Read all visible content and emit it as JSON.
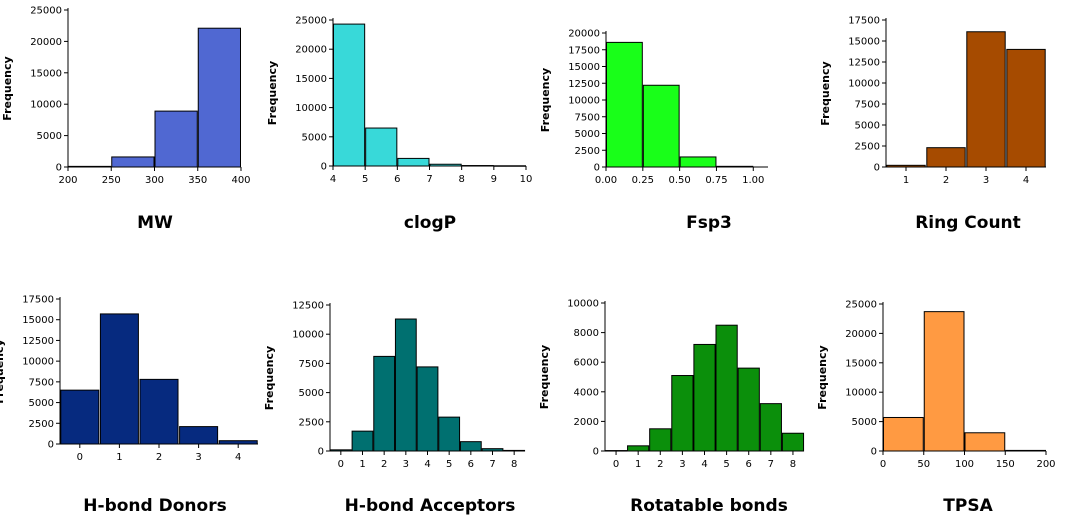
{
  "chart_data": [
    {
      "type": "bar",
      "panel": "mw",
      "title": "MW",
      "ylabel": "Frequency",
      "xlabel": "",
      "color": "#5068d2",
      "bar_mode": "histogram",
      "xlim": [
        200,
        400
      ],
      "ylim": [
        0,
        25000
      ],
      "xticks": [
        200,
        250,
        300,
        350,
        400
      ],
      "yticks": [
        0,
        5000,
        10000,
        15000,
        20000,
        25000
      ],
      "bins": [
        [
          200,
          250,
          100
        ],
        [
          250,
          300,
          1600
        ],
        [
          300,
          350,
          8900
        ],
        [
          350,
          400,
          22100
        ]
      ]
    },
    {
      "type": "bar",
      "panel": "clogp",
      "title": "clogP",
      "ylabel": "Frequency",
      "xlabel": "",
      "color": "#38d9d9",
      "bar_mode": "histogram",
      "xlim": [
        4,
        10
      ],
      "ylim": [
        0,
        25000
      ],
      "xticks": [
        4,
        5,
        6,
        7,
        8,
        9,
        10
      ],
      "yticks": [
        0,
        5000,
        10000,
        15000,
        20000,
        25000
      ],
      "bins": [
        [
          4,
          5,
          24300
        ],
        [
          5,
          6,
          6500
        ],
        [
          6,
          7,
          1300
        ],
        [
          7,
          8,
          300
        ],
        [
          8,
          9,
          80
        ],
        [
          9,
          10,
          40
        ]
      ]
    },
    {
      "type": "bar",
      "panel": "fsp3",
      "title": "Fsp3",
      "ylabel": "Frequency",
      "xlabel": "",
      "color": "#19ff19",
      "bar_mode": "histogram",
      "xlim": [
        0,
        1.1
      ],
      "ylim": [
        0,
        20000
      ],
      "xticks": [
        "0.00",
        "0.25",
        "0.50",
        "0.75",
        "1.00"
      ],
      "yticks": [
        0,
        2500,
        5000,
        7500,
        10000,
        12500,
        15000,
        17500,
        20000
      ],
      "bins": [
        [
          0,
          0.25,
          18600
        ],
        [
          0.25,
          0.5,
          12200
        ],
        [
          0.5,
          0.75,
          1500
        ],
        [
          0.75,
          1.0,
          100
        ]
      ]
    },
    {
      "type": "bar",
      "panel": "ring",
      "title": "Ring Count",
      "ylabel": "Frequency",
      "xlabel": "",
      "color": "#a64b00",
      "bar_mode": "category",
      "xlim": [
        0.5,
        4.5
      ],
      "ylim": [
        0,
        17500
      ],
      "xticks": [
        1,
        2,
        3,
        4
      ],
      "yticks": [
        0,
        2500,
        5000,
        7500,
        10000,
        12500,
        15000,
        17500
      ],
      "categories": [
        1,
        2,
        3,
        4
      ],
      "values": [
        200,
        2300,
        16100,
        14000
      ]
    },
    {
      "type": "bar",
      "panel": "hbd",
      "title": "H-bond Donors",
      "ylabel": "Frequency",
      "xlabel": "",
      "color": "#062a7f",
      "bar_mode": "category",
      "xlim": [
        -0.5,
        4.5
      ],
      "ylim": [
        0,
        17500
      ],
      "xticks": [
        0,
        1,
        2,
        3,
        4
      ],
      "yticks": [
        0,
        2500,
        5000,
        7500,
        10000,
        12500,
        15000,
        17500
      ],
      "categories": [
        0,
        1,
        2,
        3,
        4
      ],
      "values": [
        6500,
        15700,
        7800,
        2100,
        400
      ]
    },
    {
      "type": "bar",
      "panel": "hba",
      "title": "H-bond Acceptors",
      "ylabel": "Frequency",
      "xlabel": "",
      "color": "#007070",
      "bar_mode": "category",
      "xlim": [
        -0.5,
        8.5
      ],
      "ylim": [
        0,
        12500
      ],
      "xticks": [
        0,
        1,
        2,
        3,
        4,
        5,
        6,
        7,
        8
      ],
      "yticks": [
        0,
        2500,
        5000,
        7500,
        10000,
        12500
      ],
      "categories": [
        0,
        1,
        2,
        3,
        4,
        5,
        6,
        7,
        8
      ],
      "values": [
        100,
        1700,
        8100,
        11300,
        7200,
        2900,
        800,
        200,
        50
      ]
    },
    {
      "type": "bar",
      "panel": "rot",
      "title": "Rotatable bonds",
      "ylabel": "Frequency",
      "xlabel": "",
      "color": "#0b8f0b",
      "bar_mode": "category",
      "xlim": [
        -0.5,
        8.5
      ],
      "ylim": [
        0,
        10000
      ],
      "xticks": [
        0,
        1,
        2,
        3,
        4,
        5,
        6,
        7,
        8
      ],
      "yticks": [
        0,
        2000,
        4000,
        6000,
        8000,
        10000
      ],
      "categories": [
        0,
        1,
        2,
        3,
        4,
        5,
        6,
        7,
        8
      ],
      "values": [
        30,
        350,
        1500,
        5100,
        7200,
        8500,
        5600,
        3200,
        1200
      ]
    },
    {
      "type": "bar",
      "panel": "tpsa",
      "title": "TPSA",
      "ylabel": "Frequency",
      "xlabel": "",
      "color": "#ff9a42",
      "bar_mode": "histogram",
      "xlim": [
        0,
        200
      ],
      "ylim": [
        0,
        25000
      ],
      "xticks": [
        0,
        50,
        100,
        150,
        200
      ],
      "yticks": [
        0,
        5000,
        10000,
        15000,
        20000,
        25000
      ],
      "bins": [
        [
          0,
          50,
          5700
        ],
        [
          50,
          100,
          23700
        ],
        [
          100,
          150,
          3100
        ],
        [
          150,
          200,
          100
        ]
      ]
    }
  ]
}
